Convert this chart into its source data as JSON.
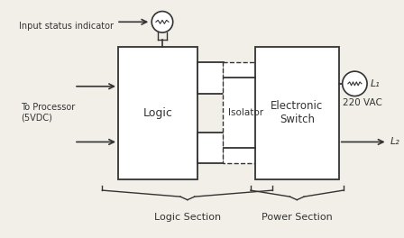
{
  "bg_color": "#f2efe9",
  "logic_label": "Logic",
  "isolator_label": "Isolator",
  "elec_switch_label": "Electronic\nSwitch",
  "input_status_label": "Input status indicator",
  "processor_label": "To Processor\n(5VDC)",
  "logic_section_label": "Logic Section",
  "power_section_label": "Power Section",
  "l1_label": "L₁",
  "l2_label": "L₂",
  "vac_label": "220 VAC",
  "line_color": "#333333",
  "box_face": "#ffffff",
  "lw": 1.3
}
